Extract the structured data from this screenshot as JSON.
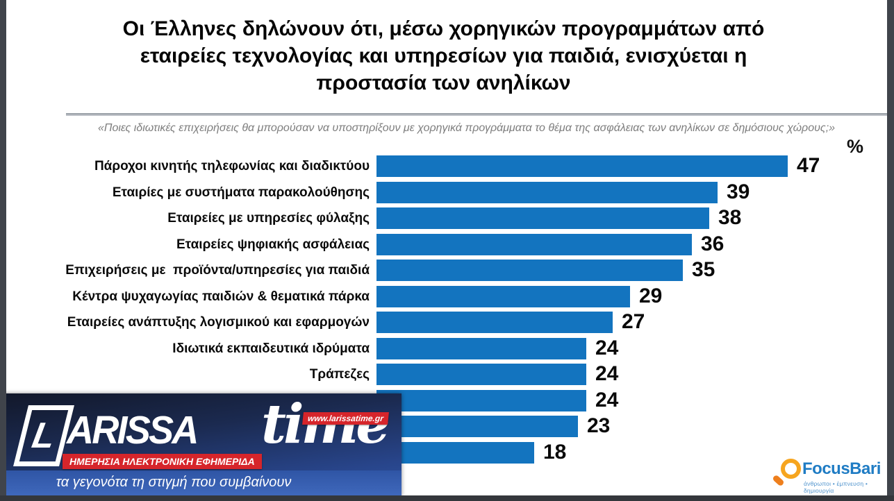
{
  "slide": {
    "title": "Οι Έλληνες δηλώνουν ότι, μέσω χορηγικών προγραμμάτων από\nεταιρείες τεχνολογίας και υπηρεσίων για παιδιά, ενισχύεται η\nπροστασία των ανηλίκων",
    "subtitle": "«Ποιες ιδιωτικές επιχειρήσεις θα μπορούσαν να υποστηρίξουν με χορηγικά προγράμματα το θέμα της ασφάλειας των ανηλίκων σε δημόσιους χώρους;»",
    "unit_label": "%"
  },
  "chart_data": {
    "type": "bar",
    "orientation": "horizontal",
    "title": "Οι Έλληνες δηλώνουν ότι, μέσω χορηγικών προγραμμάτων από εταιρείες τεχνολογίας και υπηρεσίων για παιδιά, ενισχύεται η προστασία των ανηλίκων",
    "unit": "%",
    "xlim": [
      0,
      50
    ],
    "bar_color": "#1374BF",
    "categories": [
      "Πάροχοι κινητής τηλεφωνίας και διαδικτύου",
      "Εταιρίες με συστήματα παρακολούθησης",
      "Εταιρείες με υπηρεσίες φύλαξης",
      "Εταιρείες ψηφιακής ασφάλειας",
      "Επιχειρήσεις με  προϊόντα/υπηρεσίες για παιδιά",
      "Κέντρα ψυχαγωγίας παιδιών & θεματικά πάρκα",
      "Εταιρείες ανάπτυξης λογισμικού και εφαρμογών",
      "Ιδιωτικά εκπαιδευτικά ιδρύματα",
      "Τράπεζες",
      "",
      "",
      ""
    ],
    "values": [
      47,
      39,
      38,
      36,
      35,
      29,
      27,
      24,
      24,
      24,
      23,
      18
    ]
  },
  "watermark": {
    "brand_main": "ARISSA",
    "brand_initial": "L",
    "brand_suffix": "time",
    "url_badge": "www.larissatime.gr",
    "strip_badge": "ΗΜΕΡΗΣΙΑ ΗΛΕΚΤΡΟΝΙΚΗ ΕΦΗΜΕΡΙΔΑ",
    "tagline": "τα γεγονότα τη στιγμή που συμβαίνουν"
  },
  "source": {
    "name": "FocusBari",
    "tagline": "άνθρωποι • έμπνευση • δημιουργία"
  }
}
